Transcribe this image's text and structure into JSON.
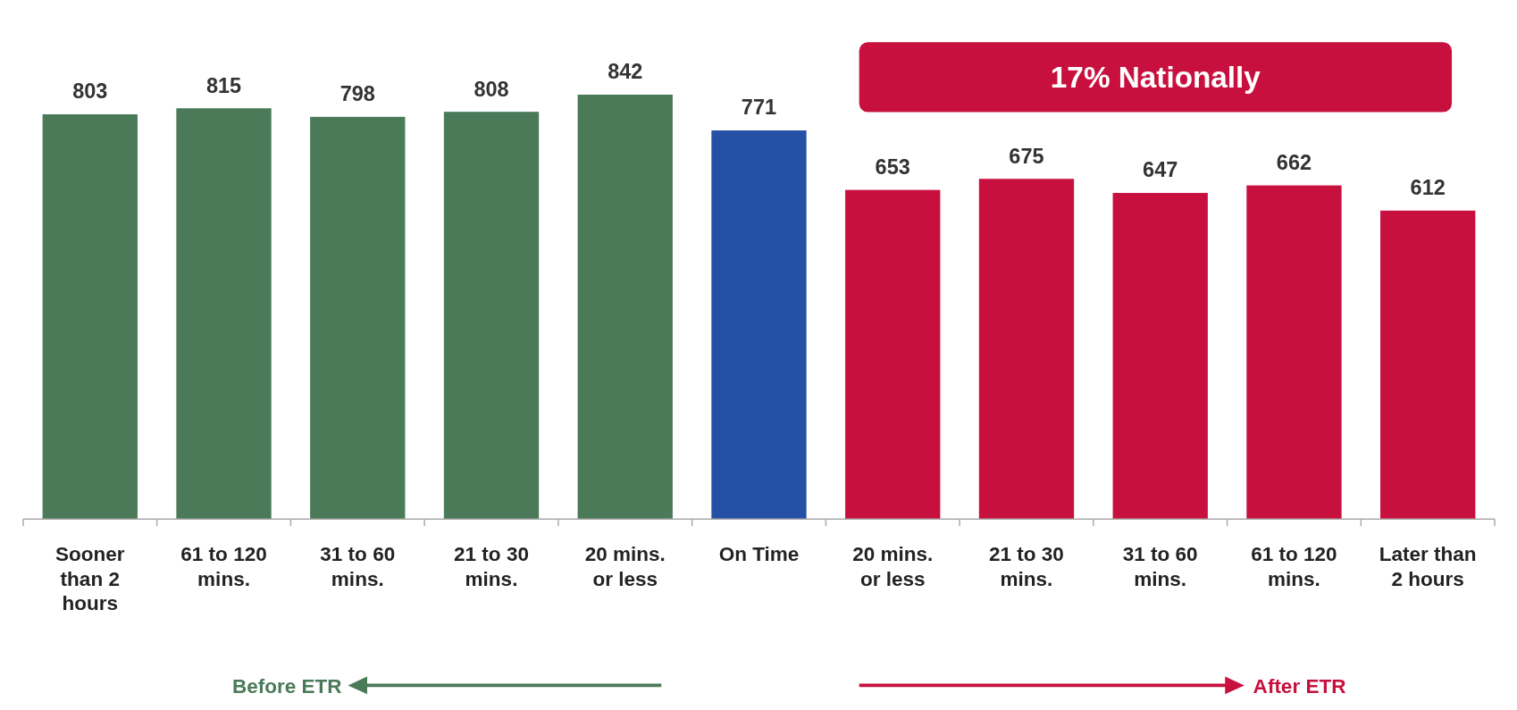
{
  "chart_data": {
    "type": "bar",
    "categories": [
      "Sooner than 2 hours",
      "61 to 120 mins.",
      "31 to 60 mins.",
      "21 to 30 mins.",
      "20 mins. or less",
      "On Time",
      "20 mins. or less",
      "21 to 30 mins.",
      "31 to 60 mins.",
      "61 to 120 mins.",
      "Later than 2 hours"
    ],
    "values": [
      803,
      815,
      798,
      808,
      842,
      771,
      653,
      675,
      647,
      662,
      612
    ],
    "colors": [
      "#4a7a58",
      "#4a7a58",
      "#4a7a58",
      "#4a7a58",
      "#4a7a58",
      "#2450a6",
      "#c8103e",
      "#c8103e",
      "#c8103e",
      "#c8103e",
      "#c8103e"
    ],
    "data_labels": true,
    "annotations": [
      "17% Nationally",
      "Before ETR",
      "After ETR"
    ]
  }
}
